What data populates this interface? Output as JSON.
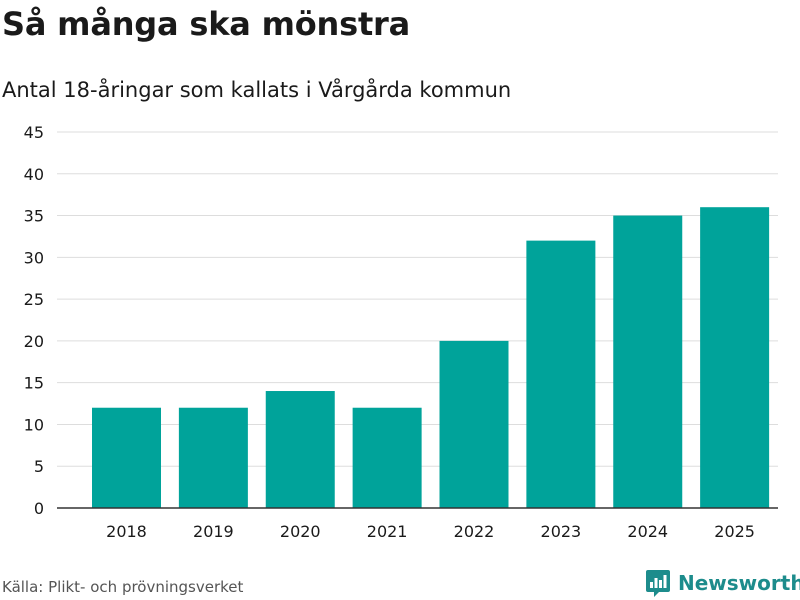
{
  "header": {
    "title": "Så många ska mönstra",
    "subtitle": "Antal 18-åringar som kallats i Vårgårda kommun"
  },
  "footer": {
    "source": "Källa: Plikt- och prövningsverket",
    "brand": "Newsworthy"
  },
  "colors": {
    "bar": "#00a39a",
    "grid": "#dddddd",
    "axis": "#333333",
    "brand": "#1d8c8c",
    "text": "#1a1a1a"
  },
  "icons": {
    "brand_logo": "newsworthy-chart-icon"
  },
  "chart_data": {
    "type": "bar",
    "title": "Så många ska mönstra",
    "subtitle": "Antal 18-åringar som kallats i Vårgårda kommun",
    "xlabel": "",
    "ylabel": "",
    "categories": [
      "2018",
      "2019",
      "2020",
      "2021",
      "2022",
      "2023",
      "2024",
      "2025"
    ],
    "values": [
      12,
      12,
      14,
      12,
      20,
      32,
      35,
      36
    ],
    "ylim": [
      0,
      45
    ],
    "yticks": [
      0,
      5,
      10,
      15,
      20,
      25,
      30,
      35,
      40,
      45
    ],
    "grid": true,
    "legend": "none"
  }
}
